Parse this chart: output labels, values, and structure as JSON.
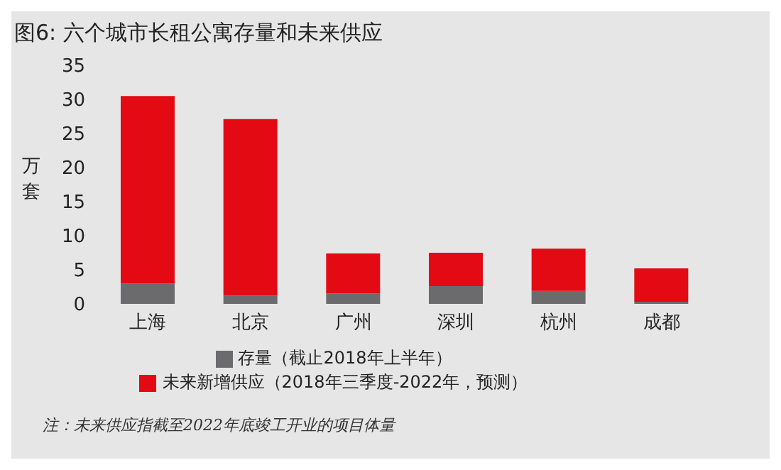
{
  "chart_data": {
    "type": "bar",
    "title": "图6: 六个城市长租公寓存量和未来供应",
    "ylabel": "万套",
    "categories": [
      "上海",
      "北京",
      "广州",
      "深圳",
      "杭州",
      "成都"
    ],
    "stacked": true,
    "series": [
      {
        "name": "存量（截止2018年上半年）",
        "color": "#6b6b6d",
        "values": [
          3.0,
          1.2,
          1.5,
          2.6,
          1.9,
          0.3
        ]
      },
      {
        "name": "未来新增供应（2018年三季度-2022年，预测）",
        "color": "#e30a14",
        "values": [
          27.5,
          25.9,
          5.9,
          4.9,
          6.2,
          4.9
        ]
      }
    ],
    "ylim": [
      0,
      35
    ],
    "yticks": [
      0,
      5,
      10,
      15,
      20,
      25,
      30,
      35
    ],
    "grid": false,
    "legend": "bottom",
    "annotations": [
      "注：未来供应指截至2022年底竣工开业的项目体量"
    ]
  }
}
